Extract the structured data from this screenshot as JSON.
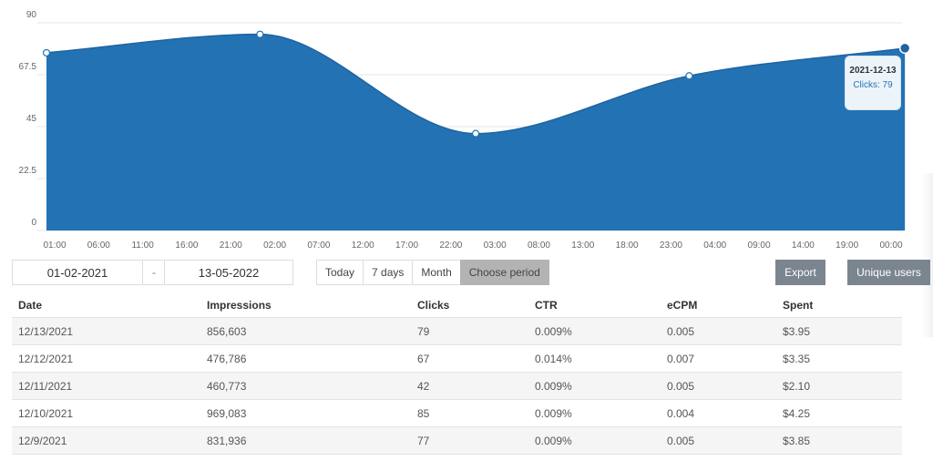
{
  "chart_data": {
    "type": "area",
    "x": [
      "01:00",
      "06:00",
      "11:00",
      "16:00",
      "21:00",
      "02:00",
      "07:00",
      "12:00",
      "17:00",
      "22:00",
      "03:00",
      "08:00",
      "13:00",
      "18:00",
      "23:00",
      "04:00",
      "09:00",
      "14:00",
      "19:00",
      "00:00"
    ],
    "markers": [
      {
        "x_index": 0,
        "y": 77
      },
      {
        "x_index": 4.85,
        "y": 85
      },
      {
        "x_index": 9.75,
        "y": 42
      },
      {
        "x_index": 14.6,
        "y": 67
      },
      {
        "x_index": 19.5,
        "y": 79
      }
    ],
    "yticks": [
      "90",
      "67.5",
      "45",
      "22.5",
      "0"
    ],
    "ylim": [
      0,
      90
    ],
    "grid": true,
    "color": "#2372b4",
    "tooltip": {
      "date": "2021-12-13",
      "label": "Clicks: 79"
    }
  },
  "filters": {
    "date_from": "01-02-2021",
    "date_sep": "-",
    "date_to": "13-05-2022",
    "periods": [
      "Today",
      "7 days",
      "Month",
      "Choose period"
    ],
    "export_label": "Export",
    "unique_label": "Unique users"
  },
  "table": {
    "headers": [
      "Date",
      "Impressions",
      "Clicks",
      "CTR",
      "eCPM",
      "Spent"
    ],
    "rows": [
      [
        "12/13/2021",
        "856,603",
        "79",
        "0.009%",
        "0.005",
        "$3.95"
      ],
      [
        "12/12/2021",
        "476,786",
        "67",
        "0.014%",
        "0.007",
        "$3.35"
      ],
      [
        "12/11/2021",
        "460,773",
        "42",
        "0.009%",
        "0.005",
        "$2.10"
      ],
      [
        "12/10/2021",
        "969,083",
        "85",
        "0.009%",
        "0.004",
        "$4.25"
      ],
      [
        "12/9/2021",
        "831,936",
        "77",
        "0.009%",
        "0.005",
        "$3.85"
      ]
    ]
  }
}
